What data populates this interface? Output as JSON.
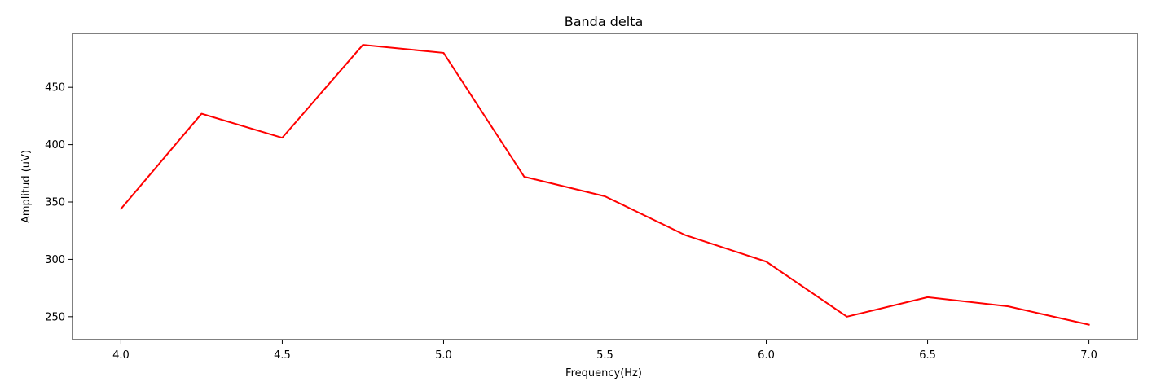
{
  "chart_data": {
    "type": "line",
    "title": "Banda delta",
    "xlabel": "Frequency(Hz)",
    "ylabel": "Amplitud (uV)",
    "x": [
      4.0,
      4.25,
      4.5,
      4.75,
      5.0,
      5.25,
      5.5,
      5.75,
      6.0,
      6.25,
      6.5,
      6.75,
      7.0
    ],
    "series": [
      {
        "color": "#ff0000",
        "values": [
          344,
          427,
          406,
          487,
          480,
          372,
          355,
          321,
          298,
          250,
          267,
          259,
          243
        ]
      }
    ],
    "xlim": [
      3.85,
      7.15
    ],
    "ylim": [
      230,
      497
    ],
    "xticks": [
      4.0,
      4.5,
      5.0,
      5.5,
      6.0,
      6.5,
      7.0
    ],
    "xtick_labels": [
      "4.0",
      "4.5",
      "5.0",
      "5.5",
      "6.0",
      "6.5",
      "7.0"
    ],
    "yticks": [
      250,
      300,
      350,
      400,
      450
    ],
    "ytick_labels": [
      "250",
      "300",
      "350",
      "400",
      "450"
    ],
    "grid": false,
    "legend": "none"
  }
}
